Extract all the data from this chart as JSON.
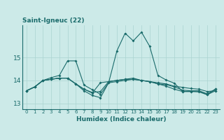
{
  "title": "Saint-Igneuc (22)",
  "xlabel": "Humidex (Indice chaleur)",
  "background_color": "#cceae8",
  "grid_color": "#aad4d0",
  "line_color": "#1a6b6b",
  "xlim": [
    -0.5,
    23.5
  ],
  "ylim": [
    12.75,
    16.4
  ],
  "yticks": [
    13,
    14,
    15
  ],
  "xtick_labels": [
    "0",
    "1",
    "2",
    "3",
    "4",
    "5",
    "6",
    "7",
    "8",
    "9",
    "10",
    "11",
    "12",
    "13",
    "14",
    "15",
    "16",
    "17",
    "18",
    "19",
    "20",
    "21",
    "22",
    "23"
  ],
  "series": [
    [
      13.55,
      13.72,
      14.0,
      14.12,
      14.22,
      14.85,
      14.85,
      13.8,
      13.6,
      13.4,
      13.9,
      15.28,
      16.05,
      15.72,
      16.1,
      15.48,
      14.22,
      14.02,
      13.88,
      13.52,
      13.52,
      13.55,
      13.38,
      13.62
    ],
    [
      13.55,
      13.72,
      14.0,
      14.05,
      14.1,
      14.1,
      13.85,
      13.62,
      13.45,
      13.9,
      13.95,
      14.0,
      14.05,
      14.05,
      14.0,
      13.95,
      13.9,
      13.85,
      13.75,
      13.7,
      13.65,
      13.62,
      13.52,
      13.55
    ],
    [
      13.55,
      13.72,
      14.0,
      14.05,
      14.1,
      14.1,
      13.85,
      13.55,
      13.35,
      13.25,
      13.9,
      13.95,
      14.0,
      14.05,
      14.0,
      13.95,
      13.85,
      13.75,
      13.62,
      13.52,
      13.52,
      13.5,
      13.38,
      13.55
    ],
    [
      13.55,
      13.72,
      14.0,
      14.05,
      14.1,
      14.1,
      13.85,
      13.62,
      13.48,
      13.52,
      13.95,
      14.0,
      14.05,
      14.1,
      14.0,
      13.95,
      13.85,
      13.82,
      13.72,
      13.58,
      13.55,
      13.55,
      13.42,
      13.62
    ]
  ]
}
